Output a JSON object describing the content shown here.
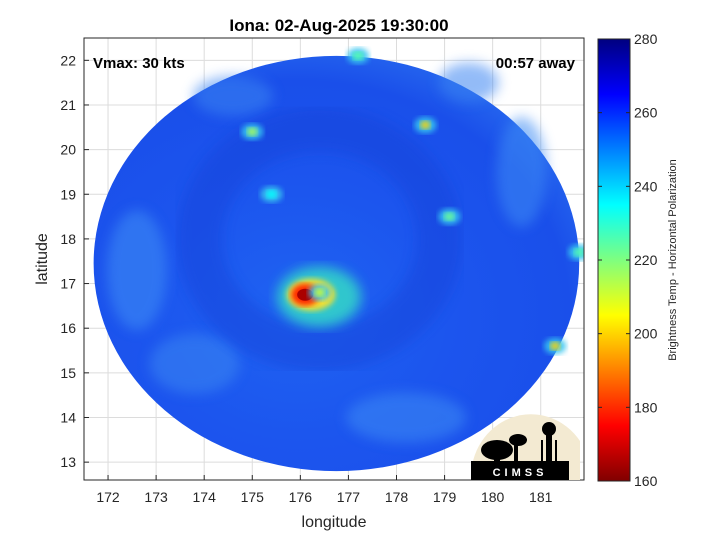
{
  "chart_data": {
    "type": "heatmap",
    "title": "Iona: 02-Aug-2025 19:30:00",
    "xlabel": "longitude",
    "ylabel": "latitude",
    "xlim": [
      171.5,
      181.9
    ],
    "ylim": [
      12.6,
      22.5
    ],
    "xticks": [
      172,
      173,
      174,
      175,
      176,
      177,
      178,
      179,
      180,
      181
    ],
    "yticks": [
      13,
      14,
      15,
      16,
      17,
      18,
      19,
      20,
      21,
      22
    ],
    "grid": true,
    "annotations": {
      "vmax": "Vmax: 30 kts",
      "time_away": "00:57 away"
    },
    "colorbar": {
      "label": "Brightness Temp - Horizontal Polarization",
      "range": [
        160,
        280
      ],
      "ticks": [
        160,
        180,
        200,
        220,
        240,
        260,
        280
      ],
      "colormap": "jet"
    },
    "swath": {
      "center": [
        176.75,
        17.45
      ],
      "radius_deg_lon": 5.05,
      "radius_deg_lat": 4.65
    },
    "features": [
      {
        "lon": 176.1,
        "lat": 16.75,
        "value": 165
      },
      {
        "lon": 176.4,
        "lat": 16.8,
        "value": 210
      },
      {
        "lon": 177.2,
        "lat": 22.1,
        "value": 225
      },
      {
        "lon": 175.0,
        "lat": 20.4,
        "value": 215
      },
      {
        "lon": 178.6,
        "lat": 20.55,
        "value": 200
      },
      {
        "lon": 179.1,
        "lat": 18.5,
        "value": 222
      },
      {
        "lon": 181.3,
        "lat": 15.6,
        "value": 200
      },
      {
        "lon": 181.8,
        "lat": 17.7,
        "value": 225
      },
      {
        "lon": 175.4,
        "lat": 19.0,
        "value": 235
      }
    ]
  },
  "logo": {
    "text": "CIMSS"
  }
}
